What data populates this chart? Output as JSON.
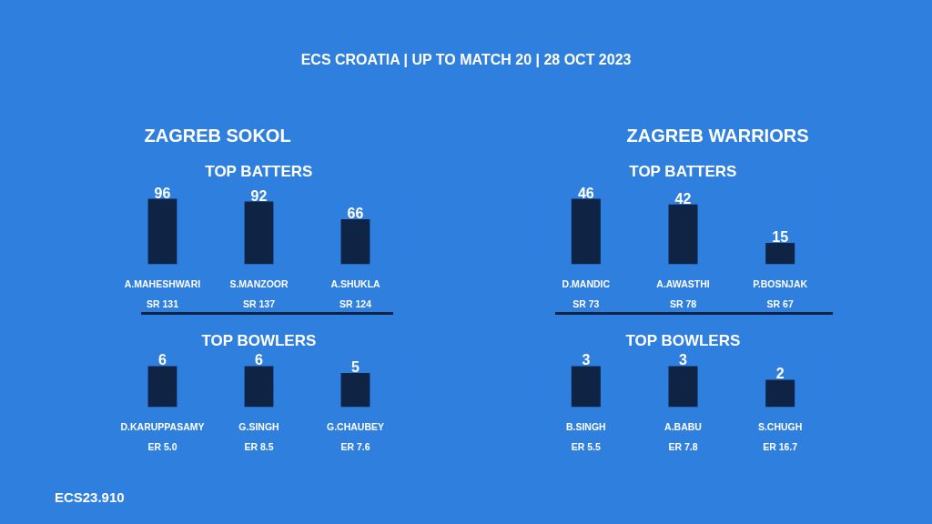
{
  "chart_data": [
    {
      "type": "bar",
      "title": "ZAGREB SOKOL",
      "subtitle": "TOP BATTERS",
      "annotations": [
        "ECS CROATIA | UP TO MATCH 20 | 28 OCT 2023",
        "ECS23.910"
      ],
      "categories": [
        "A.MAHESHWARI\nSR 131",
        "S.MANZOOR\nSR 137",
        "A.SHUKLA\nSR 124"
      ],
      "values": [
        96,
        92,
        66
      ],
      "color": "#0f2444",
      "data_labels": true
    },
    {
      "type": "bar",
      "title": "TOP BOWLERS",
      "categories": [
        "D.KARUPPASAMY\nER 5.0",
        "G.SINGH\nER 8.5",
        "G.CHAUBEY\nER 7.6"
      ],
      "values": [
        6,
        6,
        5
      ],
      "color": "#0f2444",
      "data_labels": true
    },
    {
      "type": "bar",
      "title": "ZAGREB WARRIORS",
      "subtitle": "TOP BATTERS",
      "categories": [
        "D.MANDIC\nSR 73",
        "A.AWASTHI\nSR 78",
        "P.BOSNJAK\nSR 67"
      ],
      "values": [
        46,
        42,
        15
      ],
      "color": "#0f2444",
      "data_labels": true
    },
    {
      "type": "bar",
      "title": "TOP BOWLERS",
      "categories": [
        "B.SINGH\nER 5.5",
        "A.BABU\nER 7.8",
        "S.CHUGH\nER 16.7"
      ],
      "values": [
        3,
        3,
        2
      ],
      "color": "#0f2444",
      "data_labels": true
    }
  ]
}
